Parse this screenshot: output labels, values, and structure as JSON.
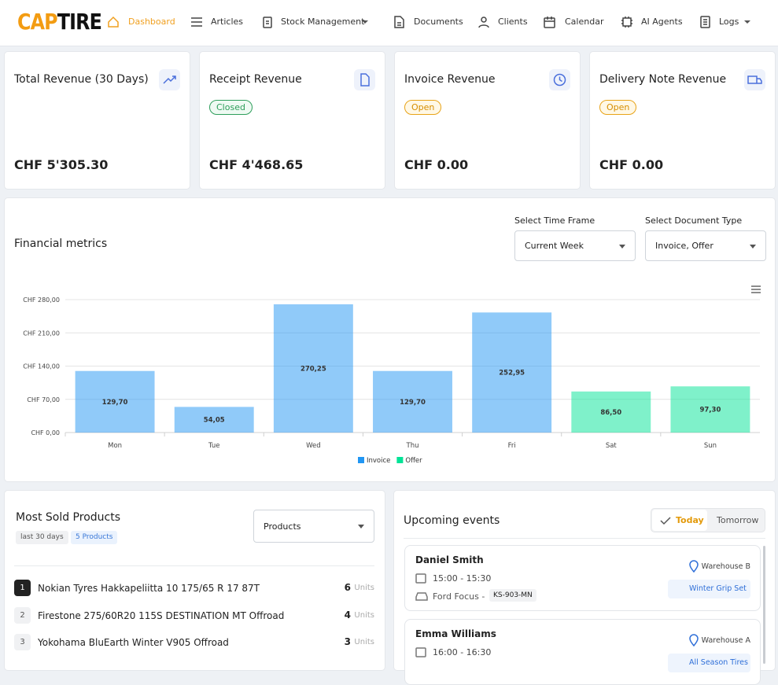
{
  "nav": {
    "logo": [
      "CAP",
      "TIRE"
    ],
    "items": [
      "Dashboard",
      "Articles",
      "Stock Management",
      "Documents",
      "Clients",
      "Calendar",
      "AI Agents",
      "Logs"
    ]
  },
  "cards": [
    {
      "title": "Total Revenue (30 Days)",
      "value": "CHF 5'305.30"
    },
    {
      "title": "Receipt Revenue",
      "badge": "Closed",
      "value": "CHF 4'468.65"
    },
    {
      "title": "Invoice Revenue",
      "badge": "Open",
      "value": "CHF 0.00"
    },
    {
      "title": "Delivery Note Revenue",
      "badge": "Open",
      "value": "CHF 0.00"
    }
  ],
  "metrics": {
    "title": "Financial metrics",
    "filters": [
      {
        "label": "Select Time Frame",
        "value": "Current Week"
      },
      {
        "label": "Select Document Type",
        "value": "Invoice, Offer"
      }
    ]
  },
  "chart_data": {
    "type": "bar",
    "categories": [
      "Mon",
      "Tue",
      "Wed",
      "Thu",
      "Fri",
      "Sat",
      "Sun"
    ],
    "series": [
      {
        "name": "Invoice",
        "color": "#2196f3",
        "values": [
          129.7,
          54.05,
          270.25,
          129.7,
          252.95,
          null,
          null
        ],
        "value_labels": [
          "129,70",
          "54,05",
          "270,25",
          "129,70",
          "252,95",
          null,
          null
        ]
      },
      {
        "name": "Offer",
        "color": "#00e396",
        "values": [
          null,
          null,
          null,
          null,
          null,
          86.5,
          97.3
        ],
        "value_labels": [
          null,
          null,
          null,
          null,
          null,
          "86,50",
          "97,30"
        ]
      }
    ],
    "ylim": [
      0,
      280
    ],
    "yticks": [
      {
        "value": 0,
        "label": "CHF 0,00"
      },
      {
        "value": 70,
        "label": "CHF 70,00"
      },
      {
        "value": 140,
        "label": "CHF 140,00"
      },
      {
        "value": 210,
        "label": "CHF 210,00"
      },
      {
        "value": 280,
        "label": "CHF 280,00"
      }
    ],
    "grid": true,
    "legend": "bottom"
  },
  "products": {
    "title": "Most Sold Products",
    "tags": [
      "last 30 days",
      "5 Products"
    ],
    "select": "Products",
    "rows": [
      {
        "rank": "1",
        "name": "Nokian Tyres Hakkapeliitta 10 175/65 R 17 87T",
        "qty": "6",
        "unit": "Units"
      },
      {
        "rank": "2",
        "name": "Firestone 275/60R20 115S DESTINATION MT Offroad",
        "qty": "4",
        "unit": "Units"
      },
      {
        "rank": "3",
        "name": "Yokohama BluEarth Winter V905 Offroad",
        "qty": "3",
        "unit": "Units"
      }
    ]
  },
  "events": {
    "title": "Upcoming events",
    "tabs": [
      "Today",
      "Tomorrow"
    ],
    "items": [
      {
        "name": "Daniel Smith",
        "time": "15:00 - 15:30",
        "car": "Ford Focus -",
        "plate": "KS-903-MN",
        "location": "Warehouse B",
        "product": "Winter Grip Set"
      },
      {
        "name": "Emma Williams",
        "time": "16:00 - 16:30",
        "location": "Warehouse A",
        "product": "All Season Tires"
      }
    ]
  }
}
